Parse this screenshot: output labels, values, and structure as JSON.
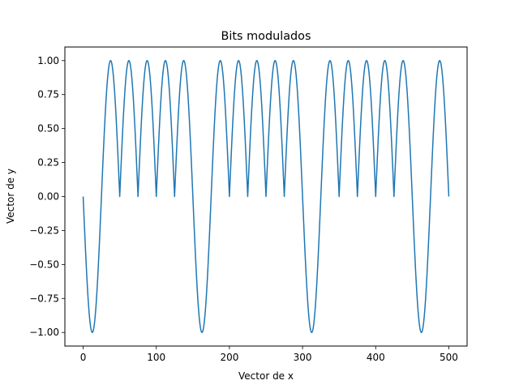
{
  "chart_data": {
    "type": "line",
    "title": "Bits modulados",
    "xlabel": "Vector de x",
    "ylabel": "Vector de y",
    "xlim": [
      -25,
      525
    ],
    "ylim": [
      -1.1,
      1.1
    ],
    "xticks": [
      0,
      100,
      200,
      300,
      400,
      500
    ],
    "yticks": [
      -1.0,
      -0.75,
      -0.5,
      -0.25,
      0.0,
      0.25,
      0.5,
      0.75,
      1.0
    ],
    "ytick_labels": [
      "−1.00",
      "−0.75",
      "−0.50",
      "−0.25",
      "0.00",
      "0.25",
      "0.50",
      "0.75",
      "1.00"
    ],
    "xtick_labels": [
      "0",
      "100",
      "200",
      "300",
      "400",
      "500"
    ],
    "grid": false,
    "line_color": "#1f77b4",
    "segment_length": 50,
    "samples_per_segment": 50,
    "bits": [
      0,
      1,
      1,
      0,
      1,
      1,
      0,
      1,
      1,
      0
    ],
    "series": [
      {
        "values_description_is_not_printed": null
      }
    ]
  }
}
